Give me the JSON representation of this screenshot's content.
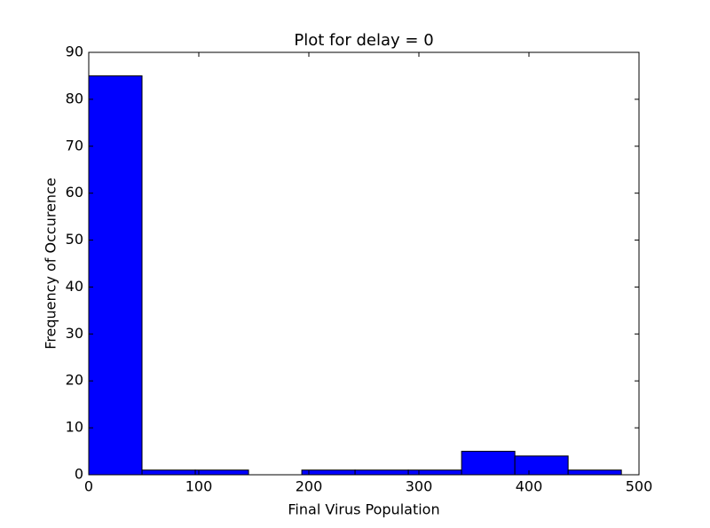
{
  "chart_data": {
    "type": "histogram",
    "title": "Plot for delay = 0",
    "x_label": "Final Virus Population",
    "y_label": "Frequency of Occurence",
    "bins": [
      0,
      48.4,
      96.8,
      145.2,
      193.6,
      242,
      290.4,
      338.8,
      387.2,
      435.6,
      484
    ],
    "values": [
      85,
      1,
      1,
      0,
      1,
      1,
      1,
      5,
      4,
      1
    ],
    "color": "#0000ff",
    "xlim": [
      0,
      500
    ],
    "xticks": [
      0,
      100,
      200,
      300,
      400,
      500
    ],
    "ylim": [
      0,
      90
    ],
    "yticks": [
      0,
      10,
      20,
      30,
      40,
      50,
      60,
      70,
      80,
      90
    ]
  }
}
